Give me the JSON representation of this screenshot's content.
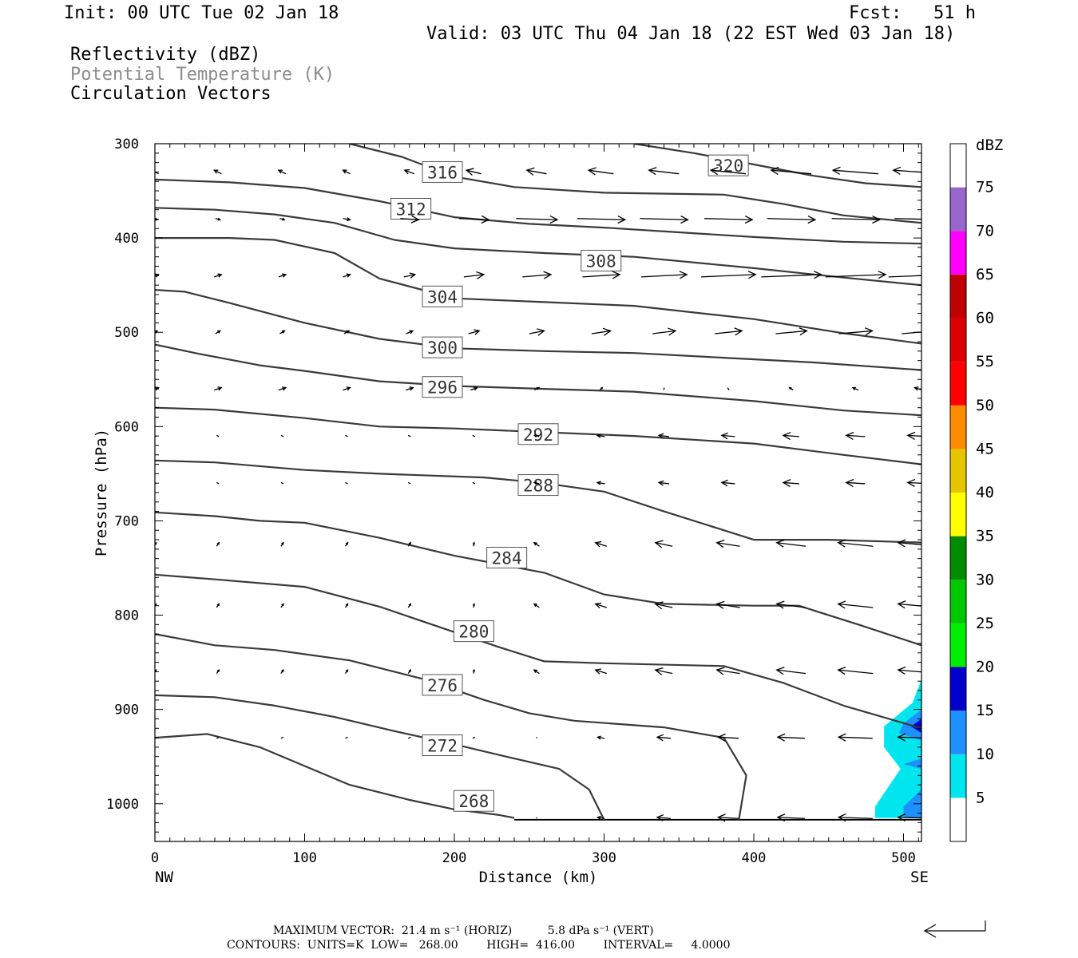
{
  "header": {
    "init": "Init: 00 UTC Tue 02 Jan 18",
    "fcst": "Fcst:   51 h",
    "valid": "Valid: 03 UTC Thu 04 Jan 18 (22 EST Wed 03 Jan 18)",
    "field_1": "Reflectivity (dBZ)",
    "field_2": "Potential Temperature (K)",
    "field_3": "Circulation Vectors"
  },
  "footer": {
    "max_vector": "MAXIMUM VECTOR:  21.4 m s⁻¹ (HORIZ)          5.8 dPa s⁻¹ (VERT)",
    "contours": "CONTOURS:  UNITS=K  LOW=   268.00        HIGH=  416.00        INTERVAL=     4.0000"
  },
  "colors": {
    "contour": "#3a3a3a",
    "refl_5": "#00e5ee",
    "refl_10": "#1e90ff",
    "refl_15": "#0000cd"
  },
  "chart_data": {
    "type": "contour",
    "xlabel": "Distance (km)",
    "ylabel": "Pressure (hPa)",
    "xlim": [
      0,
      512
    ],
    "ylim": [
      1040,
      300
    ],
    "x_ticks": [
      0,
      100,
      200,
      300,
      400,
      500
    ],
    "y_ticks": [
      300,
      400,
      500,
      600,
      700,
      800,
      900,
      1000
    ],
    "x_end_labels": {
      "left": "NW",
      "right": "SE"
    },
    "colorbar": {
      "title": "dBZ",
      "ticks": [
        75,
        70,
        65,
        60,
        55,
        50,
        45,
        40,
        35,
        30,
        25,
        20,
        15,
        10,
        5
      ],
      "bins": [
        {
          "from": 0,
          "to": 5,
          "color": "#ffffff"
        },
        {
          "from": 5,
          "to": 10,
          "color": "#00e5ee"
        },
        {
          "from": 10,
          "to": 15,
          "color": "#1e90ff"
        },
        {
          "from": 15,
          "to": 20,
          "color": "#0000cd"
        },
        {
          "from": 20,
          "to": 25,
          "color": "#00ee00"
        },
        {
          "from": 25,
          "to": 30,
          "color": "#00c800"
        },
        {
          "from": 30,
          "to": 35,
          "color": "#008b00"
        },
        {
          "from": 35,
          "to": 40,
          "color": "#ffff00"
        },
        {
          "from": 40,
          "to": 45,
          "color": "#e5c400"
        },
        {
          "from": 45,
          "to": 50,
          "color": "#ff8c00"
        },
        {
          "from": 50,
          "to": 55,
          "color": "#ff0000"
        },
        {
          "from": 55,
          "to": 60,
          "color": "#dd0000"
        },
        {
          "from": 60,
          "to": 65,
          "color": "#c00000"
        },
        {
          "from": 65,
          "to": 70,
          "color": "#ff00ff"
        },
        {
          "from": 70,
          "to": 75,
          "color": "#9966cc"
        },
        {
          "from": 75,
          "to": 80,
          "color": "#ffffff"
        }
      ]
    },
    "theta_contours": [
      {
        "level": 320,
        "label": "320",
        "label_at": [
          383,
          323
        ],
        "points": [
          [
            320,
            300
          ],
          [
            360,
            310
          ],
          [
            400,
            322
          ],
          [
            440,
            334
          ],
          [
            475,
            342
          ],
          [
            512,
            346
          ]
        ]
      },
      {
        "level": 316,
        "label": "316",
        "label_at": [
          192,
          330
        ],
        "points": [
          [
            130,
            300
          ],
          [
            165,
            314
          ],
          [
            200,
            335
          ],
          [
            240,
            346
          ],
          [
            300,
            352
          ],
          [
            380,
            354
          ],
          [
            420,
            364
          ],
          [
            460,
            376
          ],
          [
            512,
            384
          ]
        ]
      },
      {
        "level": 312,
        "label": "312",
        "label_at": [
          171,
          369
        ],
        "points": [
          [
            0,
            338
          ],
          [
            50,
            341
          ],
          [
            100,
            347
          ],
          [
            150,
            361
          ],
          [
            200,
            378
          ],
          [
            250,
            385
          ],
          [
            300,
            389
          ],
          [
            350,
            394
          ],
          [
            400,
            399
          ],
          [
            460,
            404
          ],
          [
            512,
            406
          ]
        ]
      },
      {
        "level": 308,
        "label": "308",
        "label_at": [
          298,
          424
        ],
        "points": [
          [
            0,
            368
          ],
          [
            40,
            370
          ],
          [
            80,
            375
          ],
          [
            120,
            384
          ],
          [
            160,
            402
          ],
          [
            200,
            411
          ],
          [
            260,
            416
          ],
          [
            320,
            420
          ],
          [
            400,
            432
          ],
          [
            460,
            442
          ],
          [
            512,
            450
          ]
        ]
      },
      {
        "level": 304,
        "label": "304",
        "label_at": [
          192,
          462
        ],
        "points": [
          [
            0,
            400
          ],
          [
            50,
            400
          ],
          [
            80,
            402
          ],
          [
            120,
            416
          ],
          [
            150,
            443
          ],
          [
            200,
            464
          ],
          [
            260,
            468
          ],
          [
            320,
            472
          ],
          [
            400,
            486
          ],
          [
            460,
            501
          ],
          [
            512,
            512
          ]
        ]
      },
      {
        "level": 300,
        "label": "300",
        "label_at": [
          192,
          516
        ],
        "points": [
          [
            0,
            455
          ],
          [
            20,
            457
          ],
          [
            50,
            469
          ],
          [
            100,
            490
          ],
          [
            150,
            507
          ],
          [
            200,
            517
          ],
          [
            260,
            520
          ],
          [
            320,
            522
          ],
          [
            380,
            527
          ],
          [
            440,
            532
          ],
          [
            512,
            540
          ]
        ]
      },
      {
        "level": 296,
        "label": "296",
        "label_at": [
          192,
          558
        ],
        "points": [
          [
            0,
            513
          ],
          [
            30,
            523
          ],
          [
            70,
            535
          ],
          [
            100,
            541
          ],
          [
            150,
            552
          ],
          [
            200,
            557
          ],
          [
            260,
            560
          ],
          [
            320,
            563
          ],
          [
            400,
            573
          ],
          [
            460,
            583
          ],
          [
            512,
            588
          ]
        ]
      },
      {
        "level": 292,
        "label": "292",
        "label_at": [
          256,
          608
        ],
        "points": [
          [
            0,
            580
          ],
          [
            40,
            582
          ],
          [
            100,
            591
          ],
          [
            150,
            600
          ],
          [
            200,
            602
          ],
          [
            260,
            606
          ],
          [
            320,
            610
          ],
          [
            400,
            618
          ],
          [
            460,
            630
          ],
          [
            512,
            640
          ]
        ]
      },
      {
        "level": 288,
        "label": "288",
        "label_at": [
          256,
          662
        ],
        "points": [
          [
            0,
            636
          ],
          [
            40,
            638
          ],
          [
            100,
            646
          ],
          [
            150,
            650
          ],
          [
            220,
            654
          ],
          [
            260,
            660
          ],
          [
            300,
            669
          ],
          [
            340,
            690
          ],
          [
            380,
            710
          ],
          [
            400,
            720
          ],
          [
            450,
            720
          ],
          [
            512,
            723
          ]
        ]
      },
      {
        "level": 284,
        "label": "284",
        "label_at": [
          235,
          739
        ],
        "points": [
          [
            0,
            691
          ],
          [
            40,
            695
          ],
          [
            70,
            700
          ],
          [
            100,
            702
          ],
          [
            150,
            718
          ],
          [
            200,
            737
          ],
          [
            260,
            755
          ],
          [
            300,
            778
          ],
          [
            340,
            788
          ],
          [
            400,
            790
          ],
          [
            430,
            790
          ],
          [
            470,
            810
          ],
          [
            512,
            832
          ]
        ]
      },
      {
        "level": 280,
        "label": "280",
        "label_at": [
          213,
          817
        ],
        "points": [
          [
            0,
            757
          ],
          [
            40,
            762
          ],
          [
            100,
            770
          ],
          [
            150,
            791
          ],
          [
            200,
            818
          ],
          [
            230,
            834
          ],
          [
            260,
            849
          ],
          [
            300,
            851
          ],
          [
            380,
            854
          ],
          [
            420,
            872
          ],
          [
            460,
            896
          ],
          [
            512,
            920
          ]
        ]
      },
      {
        "level": 276,
        "label": "276",
        "label_at": [
          192,
          874
        ],
        "points": [
          [
            0,
            820
          ],
          [
            40,
            832
          ],
          [
            80,
            837
          ],
          [
            130,
            848
          ],
          [
            180,
            868
          ],
          [
            220,
            890
          ],
          [
            250,
            904
          ],
          [
            280,
            912
          ],
          [
            340,
            919
          ],
          [
            380,
            930
          ],
          [
            395,
            970
          ],
          [
            390,
            1017
          ]
        ]
      },
      {
        "level": 272,
        "label": "272",
        "label_at": [
          192,
          938
        ],
        "points": [
          [
            0,
            885
          ],
          [
            40,
            887
          ],
          [
            80,
            896
          ],
          [
            120,
            908
          ],
          [
            160,
            923
          ],
          [
            200,
            937
          ],
          [
            240,
            952
          ],
          [
            270,
            963
          ],
          [
            290,
            985
          ],
          [
            300,
            1017
          ]
        ]
      },
      {
        "level": 268,
        "label": "268",
        "label_at": [
          213,
          997
        ],
        "points": [
          [
            0,
            930
          ],
          [
            35,
            926
          ],
          [
            70,
            940
          ],
          [
            100,
            960
          ],
          [
            130,
            980
          ],
          [
            170,
            996
          ],
          [
            200,
            1006
          ],
          [
            230,
            1012
          ],
          [
            240,
            1015
          ]
        ]
      }
    ],
    "max_vector_horiz_ms": 21.4,
    "max_vector_vert_dpas": 5.8
  }
}
